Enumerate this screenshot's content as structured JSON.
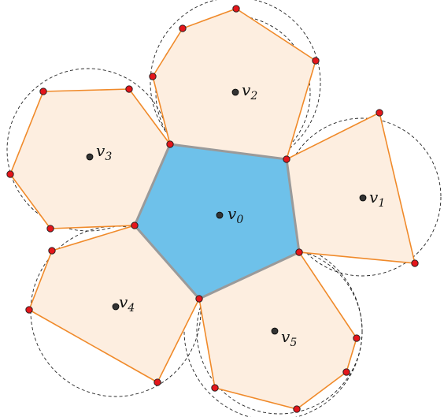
{
  "colors": {
    "center_fill": "#6ec1ea",
    "center_stroke": "#9a9a9a",
    "outer_fill": "#fdeee0",
    "outer_stroke": "#f08a2a",
    "circle_stroke": "#222222",
    "vertex_fill": "#e4161b",
    "site_fill": "#333333"
  },
  "sites": [
    {
      "id": "v0",
      "name": "v",
      "sub": "0"
    },
    {
      "id": "v1",
      "name": "v",
      "sub": "1"
    },
    {
      "id": "v2",
      "name": "v",
      "sub": "2"
    },
    {
      "id": "v3",
      "name": "v",
      "sub": "3"
    },
    {
      "id": "v4",
      "name": "v",
      "sub": "4"
    },
    {
      "id": "v5",
      "name": "v",
      "sub": "5"
    }
  ]
}
